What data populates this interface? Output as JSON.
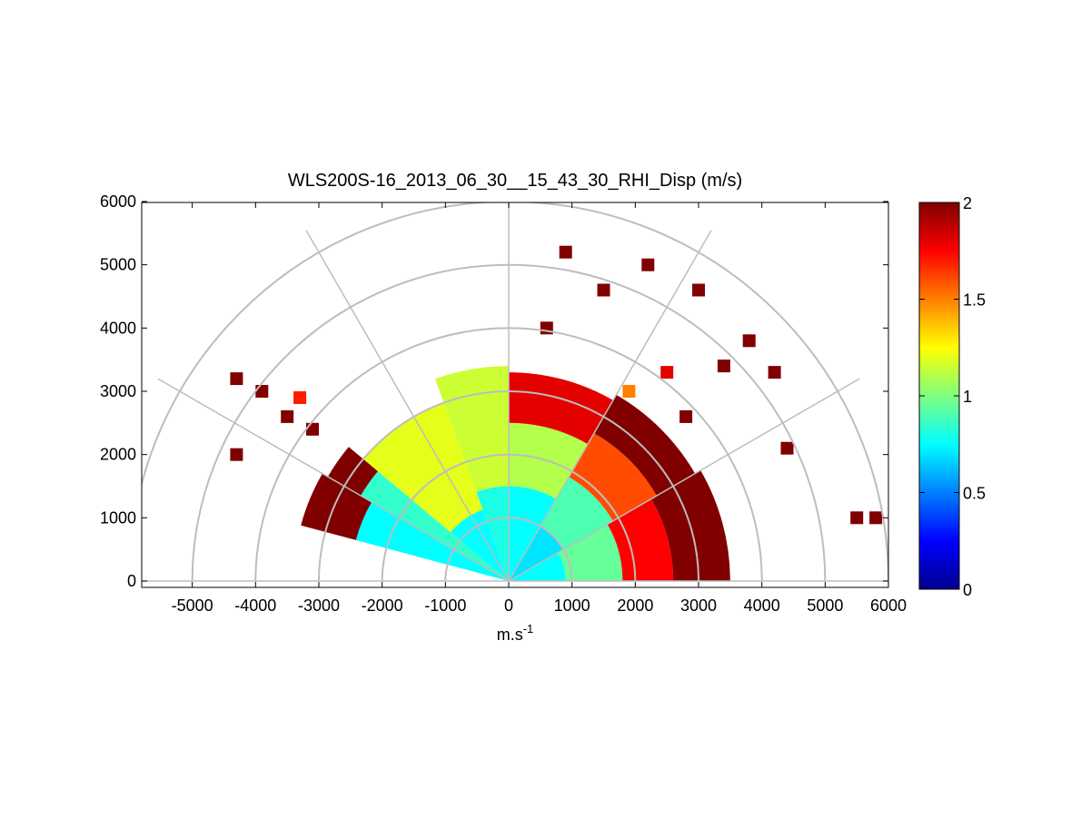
{
  "chart_data": {
    "type": "heatmap",
    "subtype": "polar-rhi",
    "title": "WLS200S-16_2013_06_30__15_43_30_RHI_Disp (m/s)",
    "xlabel": {
      "base": "m.s",
      "superscript": "-1"
    },
    "ylabel": "",
    "xlim": [
      -5800,
      6000
    ],
    "ylim": [
      -100,
      6000
    ],
    "x_ticks": [
      "-5000",
      "-4000",
      "-3000",
      "-2000",
      "-1000",
      "0",
      "1000",
      "2000",
      "3000",
      "4000",
      "5000",
      "6000"
    ],
    "y_ticks": [
      "0",
      "1000",
      "2000",
      "3000",
      "4000",
      "5000",
      "6000"
    ],
    "x_tick_values": [
      -5000,
      -4000,
      -3000,
      -2000,
      -1000,
      0,
      1000,
      2000,
      3000,
      4000,
      5000,
      6000
    ],
    "y_tick_values": [
      0,
      1000,
      2000,
      3000,
      4000,
      5000,
      6000
    ],
    "polar_grid": {
      "ring_radii": [
        1000,
        2000,
        3000,
        4000,
        5000,
        6000
      ],
      "spoke_angles_deg": [
        0,
        30,
        60,
        90,
        120,
        150,
        180
      ]
    },
    "colorbar": {
      "colormap": "jet",
      "range": [
        0,
        2
      ],
      "ticks": [
        "0",
        "0.5",
        "1",
        "1.5",
        "2"
      ],
      "tick_values": [
        0,
        0.5,
        1,
        1.5,
        2
      ]
    },
    "wedges": [
      {
        "az": [
          0,
          30
        ],
        "r": [
          0,
          900
        ],
        "val": 0.75
      },
      {
        "az": [
          0,
          30
        ],
        "r": [
          900,
          1800
        ],
        "val": 0.95
      },
      {
        "az": [
          0,
          30
        ],
        "r": [
          1800,
          2600
        ],
        "val": 1.75
      },
      {
        "az": [
          0,
          30
        ],
        "r": [
          2600,
          3500
        ],
        "val": 2.0
      },
      {
        "az": [
          30,
          60
        ],
        "r": [
          0,
          1000
        ],
        "val": 0.7
      },
      {
        "az": [
          30,
          60
        ],
        "r": [
          1000,
          1900
        ],
        "val": 0.9
      },
      {
        "az": [
          30,
          60
        ],
        "r": [
          1900,
          2700
        ],
        "val": 1.6
      },
      {
        "az": [
          30,
          60
        ],
        "r": [
          2700,
          3400
        ],
        "val": 2.0
      },
      {
        "az": [
          60,
          90
        ],
        "r": [
          0,
          1500
        ],
        "val": 0.75
      },
      {
        "az": [
          60,
          90
        ],
        "r": [
          1500,
          2500
        ],
        "val": 1.1
      },
      {
        "az": [
          60,
          90
        ],
        "r": [
          2500,
          3300
        ],
        "val": 1.8
      },
      {
        "az": [
          90,
          110
        ],
        "r": [
          0,
          1500
        ],
        "val": 0.8
      },
      {
        "az": [
          90,
          110
        ],
        "r": [
          1500,
          3400
        ],
        "val": 1.15
      },
      {
        "az": [
          110,
          140
        ],
        "r": [
          0,
          1200
        ],
        "val": 0.75
      },
      {
        "az": [
          110,
          140
        ],
        "r": [
          1200,
          3000
        ],
        "val": 1.2
      },
      {
        "az": [
          140,
          150
        ],
        "r": [
          0,
          2700
        ],
        "val": 0.85
      },
      {
        "az": [
          140,
          150
        ],
        "r": [
          2700,
          3300
        ],
        "val": 2.0
      },
      {
        "az": [
          150,
          165
        ],
        "r": [
          0,
          2500
        ],
        "val": 0.75
      },
      {
        "az": [
          150,
          165
        ],
        "r": [
          2500,
          3400
        ],
        "val": 2.0
      }
    ],
    "cells": [
      {
        "x": 600,
        "y": 4000,
        "val": 2.0
      },
      {
        "x": 1500,
        "y": 4600,
        "val": 2.0
      },
      {
        "x": 2200,
        "y": 5000,
        "val": 2.0
      },
      {
        "x": 3000,
        "y": 4600,
        "val": 2.0
      },
      {
        "x": 3800,
        "y": 3800,
        "val": 2.0
      },
      {
        "x": 4200,
        "y": 3300,
        "val": 2.0
      },
      {
        "x": 3400,
        "y": 3400,
        "val": 2.0
      },
      {
        "x": 4400,
        "y": 2100,
        "val": 2.0
      },
      {
        "x": 5500,
        "y": 1000,
        "val": 2.0
      },
      {
        "x": 5800,
        "y": 1000,
        "val": 2.0
      },
      {
        "x": 900,
        "y": 5200,
        "val": 2.0
      },
      {
        "x": 2500,
        "y": 3300,
        "val": 1.8
      },
      {
        "x": 1900,
        "y": 3000,
        "val": 1.5
      },
      {
        "x": 2800,
        "y": 2600,
        "val": 2.0
      },
      {
        "x": -4300,
        "y": 3200,
        "val": 2.0
      },
      {
        "x": -3900,
        "y": 3000,
        "val": 2.0
      },
      {
        "x": -3500,
        "y": 2600,
        "val": 2.0
      },
      {
        "x": -3300,
        "y": 2900,
        "val": 1.7
      },
      {
        "x": -4300,
        "y": 2000,
        "val": 2.0
      },
      {
        "x": -3100,
        "y": 2400,
        "val": 2.0
      }
    ]
  }
}
